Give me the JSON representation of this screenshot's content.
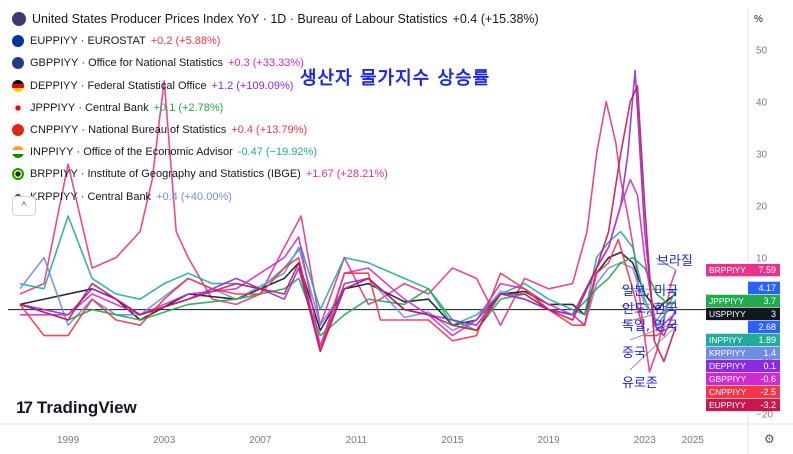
{
  "legend": [
    {
      "symbol": "United States Producer Prices Index YoY",
      "meta": "· 1D · Bureau of Labour Statistics",
      "value": "+0.4",
      "change": "(+15.38%)",
      "flag_color": "#3c3b6e",
      "chg_color": "#131722"
    },
    {
      "symbol": "EUPPIYY",
      "meta": "· EUROSTAT",
      "value": "+0.2",
      "change": "(+5.88%)",
      "flag_color": "#003399",
      "chg_color": "#f23645"
    },
    {
      "symbol": "GBPPIYY",
      "meta": "· Office for National Statistics",
      "value": "+0.3",
      "change": "(+33.33%)",
      "flag_color": "#1f3c88",
      "chg_color": "#cf2bd1"
    },
    {
      "symbol": "DEPPIYY",
      "meta": "· Federal Statistical Office",
      "value": "+1.2",
      "change": "(+109.09%)",
      "flag_color": "#dd0000",
      "chg_color": "#8a2be2"
    },
    {
      "symbol": "JPPPIYY",
      "meta": "· Central Bank",
      "value": "+0.1",
      "change": "(+2.78%)",
      "flag_color": "#e60026",
      "chg_color": "#22ab4a"
    },
    {
      "symbol": "CNPPIYY",
      "meta": "· National Bureau of Statistics",
      "value": "+0.4",
      "change": "(+13.79%)",
      "flag_color": "#de2910",
      "chg_color": "#f23645"
    },
    {
      "symbol": "INPPIYY",
      "meta": "· Office of the Economic Advisor",
      "value": "-0.47",
      "change": "(−19.92%)",
      "flag_color": "#ff9933",
      "chg_color": "#22ab9a"
    },
    {
      "symbol": "BRPPIYY",
      "meta": "· Institute of Geography and Statistics (IBGE)",
      "value": "+1.67",
      "change": "(+28.21%)",
      "flag_color": "#009c3b",
      "chg_color": "#e8338a"
    },
    {
      "symbol": "KRPPIYY",
      "meta": "· Central Bank",
      "value": "+0.4",
      "change": "(+40.00%)",
      "flag_color": "#2b59c3",
      "chg_color": "#6e8ee6"
    }
  ],
  "collapse_label": "^",
  "title_kr": "생산자 물가지수 상승률",
  "annotations": {
    "brazil": "브라질",
    "japan_us": "일본, 미국",
    "india_korea": "인도, 한국",
    "germany_uk": "독일, 영국",
    "china": "중국",
    "eurozone": "유로존"
  },
  "logo_text": "TradingView",
  "logo_mark": "17",
  "percent_button": "%",
  "settings_icon": "⚙",
  "chart_data": {
    "type": "line",
    "title": "United States Producer Prices Index YoY",
    "ylim": [
      -22,
      58
    ],
    "yticks": [
      -20,
      -10,
      0,
      10,
      20,
      30,
      40,
      50
    ],
    "ytick_labels": [
      "−20",
      "−10",
      "0",
      "10",
      "20",
      "30",
      "40",
      "50"
    ],
    "xlim": [
      1996.5,
      2027.3
    ],
    "xticks": [
      1999,
      2003,
      2007,
      2011,
      2015,
      2019,
      2023,
      2025
    ],
    "xtick_labels": [
      "1999",
      "2003",
      "2007",
      "2011",
      "2015",
      "2019",
      "2023",
      "2025"
    ],
    "zero_line": true,
    "series": [
      {
        "name": "BRPPIYY",
        "color": "#e8338a",
        "last": "7.59",
        "x": [
          1997,
          1998,
          1999,
          2000,
          2001,
          2002,
          2002.5,
          2003,
          2003.5,
          2004,
          2005,
          2006,
          2007,
          2008,
          2008.7,
          2009.5,
          2010.5,
          2011.5,
          2012,
          2013,
          2014,
          2015,
          2016,
          2017,
          2018,
          2019,
          2020,
          2020.6,
          2021,
          2021.4,
          2021.8,
          2022,
          2022.3,
          2022.6,
          2022.9,
          2023.2,
          2023.5,
          2023.8,
          2024.1,
          2024.3
        ],
        "y": [
          3,
          5,
          28,
          8,
          10,
          15,
          25,
          44,
          15,
          10,
          2,
          1,
          3,
          12,
          18,
          -3,
          10,
          1,
          2,
          5,
          3,
          8,
          6,
          -3,
          6,
          4,
          5,
          15,
          30,
          40,
          32,
          25,
          18,
          10,
          -2,
          -12,
          -8,
          -2,
          5,
          7.59
        ]
      },
      {
        "name": "USPPIYY",
        "color": "#131722",
        "last": "3",
        "x": [
          1997,
          2000,
          2001,
          2002,
          2004,
          2006,
          2008,
          2008.6,
          2009.5,
          2010.5,
          2011.5,
          2013,
          2014,
          2015,
          2016,
          2017,
          2018,
          2019,
          2020,
          2020.5,
          2021,
          2021.5,
          2022,
          2022.5,
          2023,
          2023.5,
          2024,
          2024.3
        ],
        "y": [
          1,
          4,
          2,
          -2,
          3,
          2,
          6,
          9,
          -4,
          4,
          5,
          1.5,
          2,
          -3,
          -2,
          3,
          3.5,
          1,
          1,
          -1,
          7,
          10,
          11,
          9,
          3,
          0,
          2,
          3
        ]
      },
      {
        "name": "INPPIYY",
        "color": "#22ab9a",
        "last": "1.89",
        "x": [
          1997,
          1998,
          1999,
          2000,
          2001,
          2002,
          2003,
          2004,
          2005,
          2006,
          2007,
          2008,
          2008.7,
          2009.5,
          2010.5,
          2011.5,
          2013,
          2014,
          2015,
          2016,
          2017,
          2018,
          2019,
          2020,
          2020.5,
          2021,
          2021.5,
          2022,
          2022.5,
          2023,
          2023.5,
          2024,
          2024.3
        ],
        "y": [
          5,
          4,
          18,
          6,
          3,
          2,
          5,
          7,
          5,
          5,
          4,
          8,
          12,
          0,
          10,
          9,
          6,
          4,
          -3,
          -1,
          3,
          5,
          2,
          0,
          -1,
          10,
          13,
          15,
          12,
          2,
          -3,
          0,
          1.89
        ]
      },
      {
        "name": "KRPPIYY",
        "color": "#6e8ee6",
        "last": "1.4",
        "x": [
          1997,
          1998,
          1999,
          2000,
          2001,
          2002,
          2004,
          2006,
          2008,
          2008.6,
          2009.5,
          2010.5,
          2011.5,
          2013,
          2014,
          2015,
          2016,
          2017,
          2018,
          2019,
          2020,
          2020.5,
          2021,
          2021.5,
          2022,
          2022.5,
          2023,
          2023.5,
          2024,
          2024.3
        ],
        "y": [
          4,
          10,
          -3,
          2,
          -1,
          -1,
          6,
          2,
          7,
          12,
          -3,
          4,
          6,
          -1.5,
          -0.5,
          -4,
          -2,
          3.5,
          2,
          0,
          -1,
          -3,
          5,
          8,
          9,
          8,
          1,
          -2,
          1,
          1.4
        ]
      },
      {
        "name": "JPPPIYY",
        "color": "#22ab4a",
        "last": "3.7",
        "x": [
          1997,
          1999,
          2000,
          2002,
          2004,
          2006,
          2008,
          2008.6,
          2009.5,
          2010.5,
          2011.5,
          2013,
          2014,
          2015,
          2016,
          2017,
          2018,
          2019,
          2020,
          2021,
          2021.5,
          2022,
          2022.5,
          2023,
          2023.5,
          2024,
          2024.3
        ],
        "y": [
          1,
          -2,
          0,
          -2,
          1,
          2,
          4,
          6,
          -5,
          -1,
          2,
          1,
          4,
          -2,
          -4,
          2,
          3,
          0,
          -1,
          4,
          6,
          9,
          10,
          8,
          3,
          1,
          3.7
        ]
      },
      {
        "name": "DEPPIYY",
        "color": "#8a2be2",
        "last": "0.1",
        "x": [
          1997,
          1999,
          2000,
          2001,
          2002,
          2004,
          2006,
          2008,
          2008.6,
          2009.5,
          2010.5,
          2011.5,
          2013,
          2014,
          2015,
          2016,
          2017,
          2018,
          2019,
          2020,
          2021,
          2021.5,
          2022,
          2022.3,
          2022.6,
          2023,
          2023.4,
          2023.8,
          2024.3
        ],
        "y": [
          1,
          -1,
          4,
          2,
          -1,
          2,
          6,
          2,
          8,
          -8,
          5,
          6,
          0,
          -1,
          -2,
          -3,
          3,
          2,
          0,
          -1,
          8,
          12,
          20,
          30,
          46,
          15,
          -3,
          -5,
          0.1
        ]
      },
      {
        "name": "GBPPIYY",
        "color": "#cf2bd1",
        "last": "-0.6",
        "x": [
          1997,
          1999,
          2000,
          2001,
          2002,
          2004,
          2006,
          2008,
          2008.6,
          2009.5,
          2010.5,
          2011.5,
          2013,
          2014,
          2015,
          2016,
          2017,
          2018,
          2019,
          2020,
          2020.5,
          2021,
          2021.5,
          2022,
          2022.4,
          2022.7,
          2023,
          2023.5,
          2024.3
        ],
        "y": [
          -1,
          -1,
          3,
          1,
          -1,
          3,
          4,
          10,
          14,
          -7,
          7,
          8,
          2,
          -1,
          -5,
          -2,
          5,
          4,
          1,
          -1,
          -3,
          8,
          12,
          20,
          25,
          22,
          10,
          -4,
          -0.6
        ]
      },
      {
        "name": "CNPPIYY",
        "color": "#f23645",
        "last": "-2.5",
        "x": [
          1997,
          1998,
          1999,
          2000,
          2001,
          2002,
          2003,
          2004,
          2005,
          2006,
          2007,
          2008,
          2008.6,
          2009.5,
          2010.5,
          2011.5,
          2012,
          2013,
          2014,
          2015,
          2016,
          2017,
          2018,
          2019,
          2020,
          2020.5,
          2021,
          2021.5,
          2021.9,
          2022.5,
          2023,
          2023.5,
          2024.3
        ],
        "y": [
          1,
          -5,
          -5,
          2,
          -2,
          -3,
          2,
          6,
          4,
          3,
          3,
          8,
          10,
          -8,
          7,
          7,
          -2,
          -2,
          -2,
          -6,
          -5,
          7,
          4,
          0,
          -3,
          -3,
          7,
          9,
          13.5,
          4,
          -5,
          -5,
          -2.5
        ]
      },
      {
        "name": "EUPPIYY",
        "color": "#c9174e",
        "last": "-3.2",
        "x": [
          1997,
          1999,
          2000,
          2001,
          2002,
          2004,
          2006,
          2008,
          2008.6,
          2009.5,
          2010.5,
          2011.5,
          2013,
          2014,
          2015,
          2016,
          2017,
          2018,
          2019,
          2020,
          2021,
          2021.5,
          2022,
          2022.4,
          2022.7,
          2023,
          2023.4,
          2023.8,
          2024.3
        ],
        "y": [
          1,
          -2,
          5,
          2,
          -1,
          2,
          5,
          3,
          9,
          -8,
          4,
          6,
          0,
          -1,
          -3,
          -4,
          3,
          3,
          0,
          -2,
          8,
          15,
          30,
          40,
          43,
          20,
          -6,
          -10,
          -3.2
        ]
      }
    ],
    "price_labels": [
      {
        "name": "BRPPIYY",
        "value": "7.59",
        "color": "#e8338a"
      },
      {
        "name": "",
        "value": "4.17",
        "color": "#2962ff"
      },
      {
        "name": "JPPPIYY",
        "value": "3.7",
        "color": "#22ab4a"
      },
      {
        "name": "USPPIYY",
        "value": "3",
        "color": "#131722"
      },
      {
        "name": "",
        "value": "2.68",
        "color": "#2962ff"
      },
      {
        "name": "INPPIYY",
        "value": "1.89",
        "color": "#22ab9a"
      },
      {
        "name": "KRPPIYY",
        "value": "1.4",
        "color": "#6e8ee6"
      },
      {
        "name": "DEPPIYY",
        "value": "0.1",
        "color": "#8a2be2"
      },
      {
        "name": "GBPPIYY",
        "value": "-0.6",
        "color": "#cf2bd1"
      },
      {
        "name": "CNPPIYY",
        "value": "-2.5",
        "color": "#f23645"
      },
      {
        "name": "EUPPIYY",
        "value": "-3.2",
        "color": "#c9174e"
      }
    ]
  }
}
